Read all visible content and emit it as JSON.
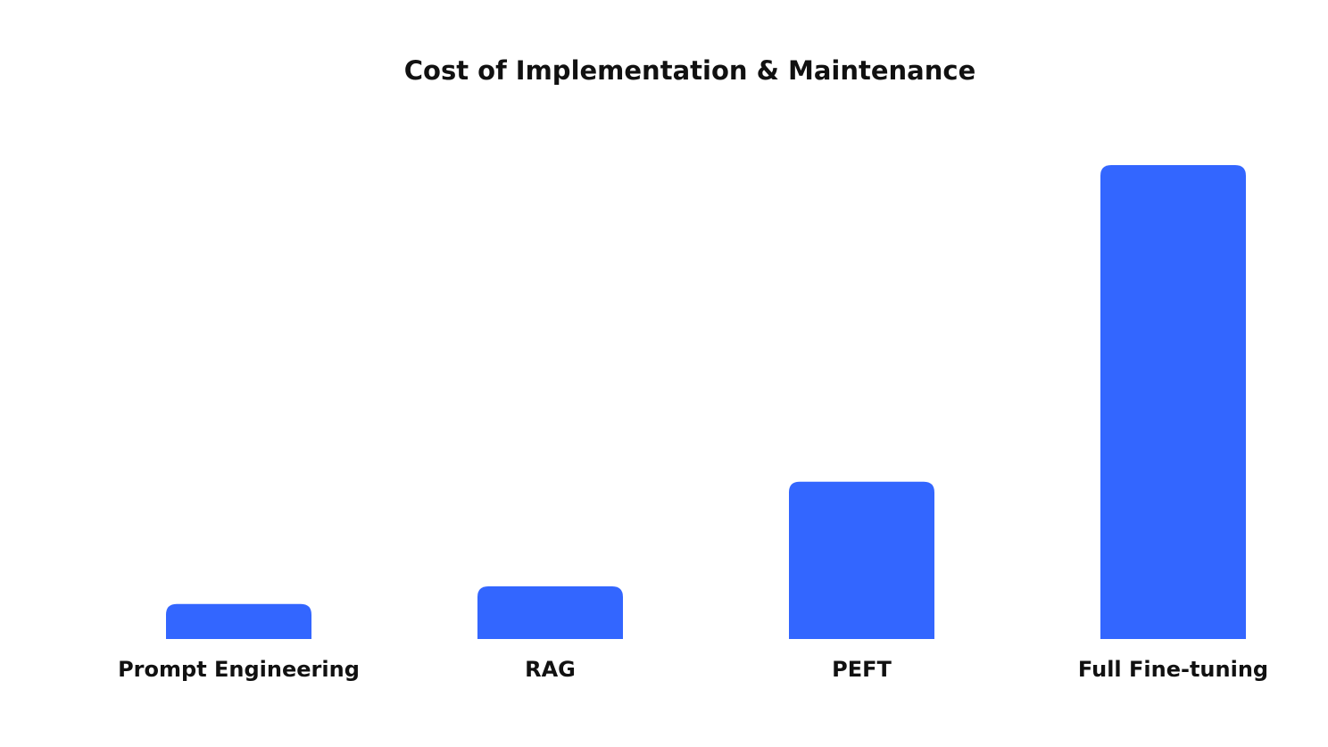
{
  "chart_data": {
    "type": "bar",
    "title": "Cost of Implementation & Maintenance",
    "categories": [
      "Prompt Engineering",
      "RAG",
      "PEFT",
      "Full Fine-tuning"
    ],
    "values": [
      7.4,
      11.1,
      33.2,
      100
    ],
    "ylim": [
      0,
      100
    ],
    "xlabel": "",
    "ylabel": "",
    "grid": false,
    "bar_color": "#3366FF"
  }
}
